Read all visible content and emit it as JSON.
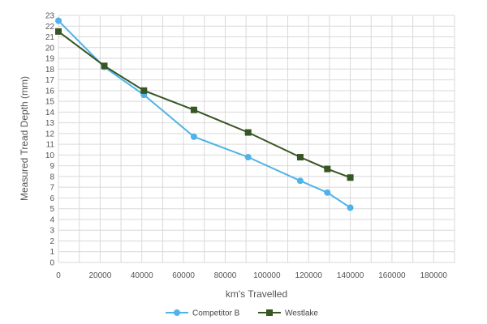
{
  "chart_data": {
    "type": "line",
    "xlabel": "km's Travelled",
    "ylabel": "Measured Tread Depth (mm)",
    "xlim": [
      0,
      190000
    ],
    "ylim": [
      0,
      23
    ],
    "x_ticks": [
      0,
      20000,
      40000,
      60000,
      80000,
      100000,
      120000,
      140000,
      160000,
      180000
    ],
    "y_ticks": [
      0,
      1,
      2,
      3,
      4,
      5,
      6,
      7,
      8,
      9,
      10,
      11,
      12,
      13,
      14,
      15,
      16,
      17,
      18,
      19,
      20,
      21,
      22,
      23
    ],
    "grid": true,
    "legend_position": "bottom",
    "series": [
      {
        "name": "Competitor B",
        "color": "#4fb3e8",
        "marker": "circle",
        "points": [
          {
            "x": 0,
            "y": 22.5
          },
          {
            "x": 22000,
            "y": 18.2
          },
          {
            "x": 41000,
            "y": 15.6
          },
          {
            "x": 65000,
            "y": 11.7
          },
          {
            "x": 91000,
            "y": 9.8
          },
          {
            "x": 116000,
            "y": 7.6
          },
          {
            "x": 129000,
            "y": 6.5
          },
          {
            "x": 140000,
            "y": 5.1
          }
        ]
      },
      {
        "name": "Westlake",
        "color": "#375623",
        "marker": "square",
        "points": [
          {
            "x": 0,
            "y": 21.5
          },
          {
            "x": 22000,
            "y": 18.3
          },
          {
            "x": 41000,
            "y": 16.0
          },
          {
            "x": 65000,
            "y": 14.2
          },
          {
            "x": 91000,
            "y": 12.1
          },
          {
            "x": 116000,
            "y": 9.8
          },
          {
            "x": 129000,
            "y": 8.7
          },
          {
            "x": 140000,
            "y": 7.9
          }
        ]
      }
    ]
  }
}
